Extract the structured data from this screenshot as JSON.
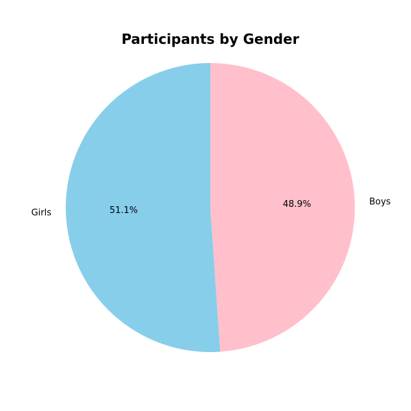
{
  "chart_data": {
    "type": "pie",
    "title": "Participants by Gender",
    "start_angle_deg": 90,
    "direction": "counterclockwise",
    "slices": [
      {
        "label": "Girls",
        "value": 51.1,
        "pct_text": "51.1%",
        "color": "#87CEEB"
      },
      {
        "label": "Boys",
        "value": 48.9,
        "pct_text": "48.9%",
        "color": "#FFC0CB"
      }
    ]
  }
}
